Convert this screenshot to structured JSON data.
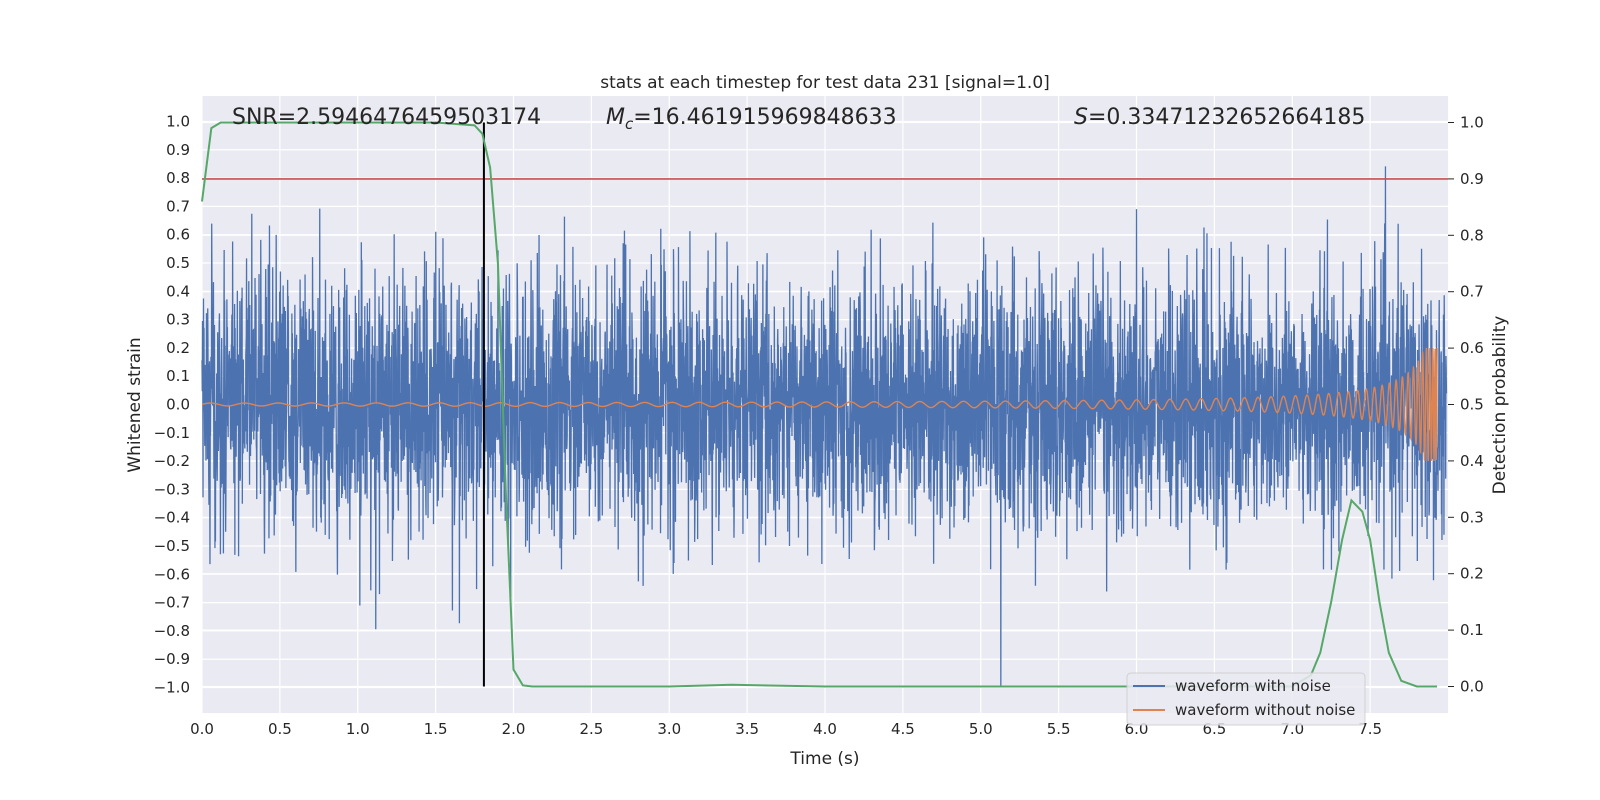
{
  "chart_data": {
    "type": "line",
    "title": "stats at each timestep for test data 231 [signal=1.0]",
    "xlabel": "Time (s)",
    "ylabel": "Whitened strain",
    "y2label": "Detection probability",
    "xlim": [
      0.0,
      8.0
    ],
    "ylim": [
      -1.09,
      1.09
    ],
    "y2lim": [
      -0.047,
      1.047
    ],
    "xticks": [
      "0.0",
      "0.5",
      "1.0",
      "1.5",
      "2.0",
      "2.5",
      "3.0",
      "3.5",
      "4.0",
      "4.5",
      "5.0",
      "5.5",
      "6.0",
      "6.5",
      "7.0",
      "7.5"
    ],
    "yticks": [
      "1.0",
      "0.9",
      "0.8",
      "0.7",
      "0.6",
      "0.5",
      "0.4",
      "0.3",
      "0.2",
      "0.1",
      "0.0",
      "−0.1",
      "−0.2",
      "−0.3",
      "−0.4",
      "−0.5",
      "−0.6",
      "−0.7",
      "−0.8",
      "−0.9",
      "−1.0"
    ],
    "y2ticks": [
      "1.0",
      "0.9",
      "0.8",
      "0.7",
      "0.6",
      "0.5",
      "0.4",
      "0.3",
      "0.2",
      "0.1",
      "0.0"
    ],
    "grid": true,
    "legend_position": "lower-right",
    "annotations": {
      "snr": "SNR=2.5946476459503174",
      "mc_symbol": "M",
      "mc_subscript": "c",
      "mc_value": "=16.461915969848633",
      "s_symbol": "S",
      "s_value": "=0.33471232652664185"
    },
    "series": [
      {
        "name": "waveform with noise",
        "color": "#4c72b0",
        "axis": "left",
        "description_values": {
          "t_start": 0.0,
          "t_end": 7.99,
          "min": -1.0,
          "max": 1.0
        }
      },
      {
        "name": "waveform without noise",
        "color": "#dd8452",
        "axis": "left",
        "chirp": {
          "t_start": 0.0,
          "t_end": 7.93,
          "amp_start": 0.005,
          "amp_end": 0.2
        }
      },
      {
        "name": "",
        "color": "#55a868",
        "axis": "right",
        "x": [
          0.0,
          0.06,
          0.12,
          0.5,
          1.0,
          1.5,
          1.75,
          1.8,
          1.85,
          1.9,
          1.95,
          2.0,
          2.06,
          2.12,
          2.5,
          3.0,
          3.4,
          4.0,
          5.0,
          6.0,
          6.8,
          7.0,
          7.12,
          7.18,
          7.25,
          7.32,
          7.38,
          7.45,
          7.5,
          7.56,
          7.62,
          7.7,
          7.8,
          7.93
        ],
        "y": [
          0.86,
          0.99,
          1.0,
          1.0,
          1.0,
          1.0,
          0.995,
          0.98,
          0.92,
          0.75,
          0.35,
          0.03,
          0.002,
          0.0,
          0.0,
          0.0,
          0.003,
          0.0,
          0.0,
          0.0,
          0.0,
          0.0,
          0.02,
          0.06,
          0.15,
          0.26,
          0.33,
          0.31,
          0.26,
          0.15,
          0.06,
          0.01,
          0.0,
          0.0
        ]
      }
    ],
    "threshold_line": {
      "axis": "right",
      "value": 0.9,
      "color": "#c44e52"
    },
    "marker_line": {
      "x": 1.81,
      "color": "#000000"
    }
  }
}
